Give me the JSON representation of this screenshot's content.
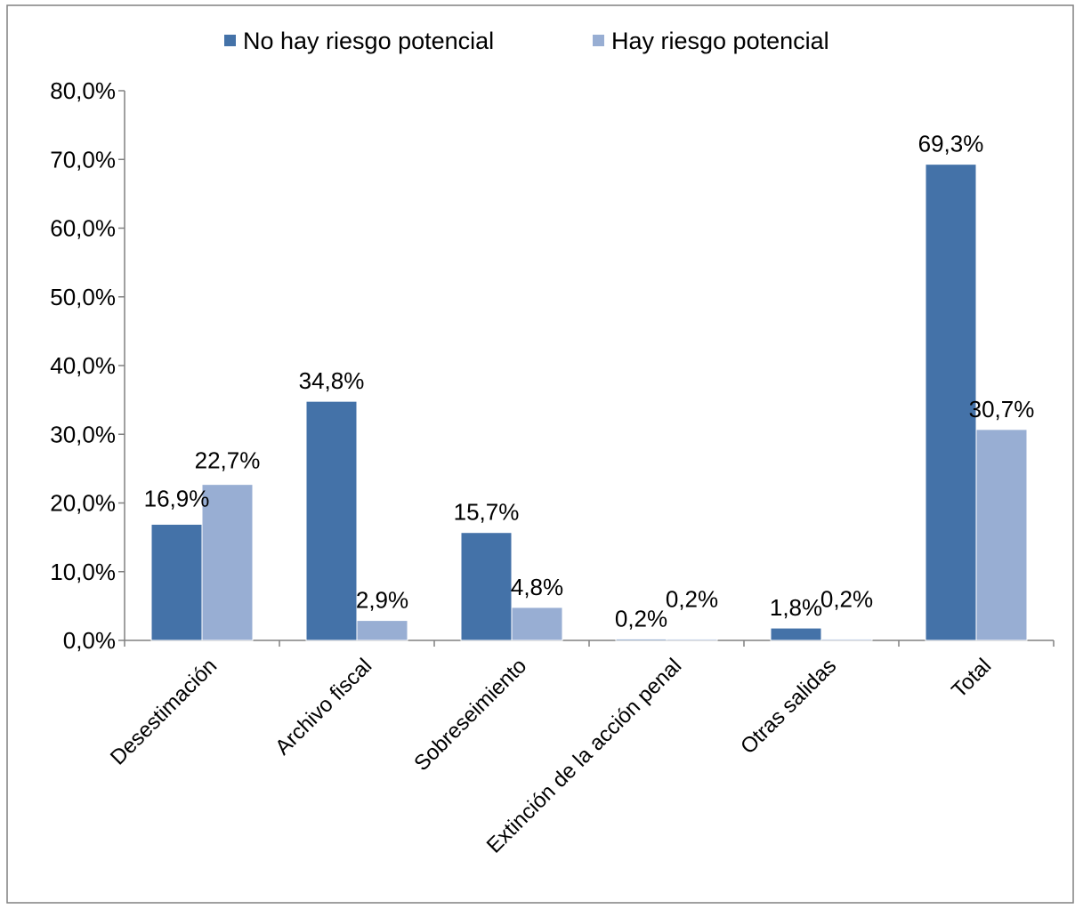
{
  "header_fragment": "(…)",
  "chart_data": {
    "type": "bar",
    "categories": [
      "Desestimación",
      "Archivo fiscal",
      "Sobreseimiento",
      "Extinción de la acción penal",
      "Otras salidas",
      "Total"
    ],
    "series": [
      {
        "name": "No hay riesgo potencial",
        "values": [
          16.9,
          34.8,
          15.7,
          0.2,
          1.8,
          69.3
        ],
        "labels": [
          "16,9%",
          "34,8%",
          "15,7%",
          "0,2%",
          "1,8%",
          "69,3%"
        ],
        "color": "#4472a8"
      },
      {
        "name": "Hay riesgo potencial",
        "values": [
          22.7,
          2.9,
          4.8,
          0.2,
          0.2,
          30.7
        ],
        "labels": [
          "22,7%",
          "2,9%",
          "4,8%",
          "0,2%",
          "0,2%",
          "30,7%"
        ],
        "color": "#98aed3"
      }
    ],
    "ylim": [
      0,
      80
    ],
    "yticks": [
      0,
      10,
      20,
      30,
      40,
      50,
      60,
      70,
      80
    ],
    "ytick_labels": [
      "0,0%",
      "10,0%",
      "20,0%",
      "30,0%",
      "40,0%",
      "50,0%",
      "60,0%",
      "70,0%",
      "80,0%"
    ],
    "legend_position": "top-center",
    "grid": false
  }
}
